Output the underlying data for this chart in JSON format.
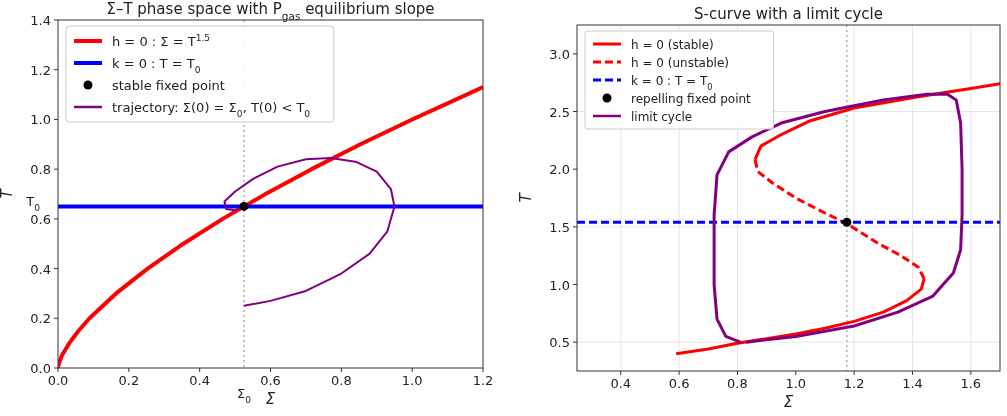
{
  "chart_data": [
    {
      "type": "line",
      "title": "Σ–T phase space with P$_{gas}$ equilibrium slope",
      "xlabel": "Σ",
      "ylabel": "T",
      "xlim": [
        0,
        1.2
      ],
      "ylim": [
        0,
        1.4
      ],
      "xticks": [
        {
          "value": 0,
          "label": "0.0"
        },
        {
          "value": 0.2,
          "label": "0.2"
        },
        {
          "value": 0.4,
          "label": "0.4"
        },
        {
          "value": 0.6,
          "label": "0.6"
        },
        {
          "value": 0.8,
          "label": "0.8"
        },
        {
          "value": 1,
          "label": "1.0"
        },
        {
          "value": 1.2,
          "label": "1.2"
        }
      ],
      "yticks": [
        {
          "value": 0,
          "label": "0.0"
        },
        {
          "value": 0.2,
          "label": "0.2"
        },
        {
          "value": 0.4,
          "label": "0.4"
        },
        {
          "value": 0.6,
          "label": "0.6"
        },
        {
          "value": 0.8,
          "label": "0.8"
        },
        {
          "value": 1,
          "label": "1.0"
        },
        {
          "value": 1.2,
          "label": "1.2"
        },
        {
          "value": 1.4,
          "label": "1.4"
        }
      ],
      "annotations": [
        {
          "text": "Σ$_{0}$",
          "x": 0.525,
          "y": 0
        },
        {
          "text": "T$_{0}$",
          "x": 0,
          "y": 0.65
        }
      ],
      "grid": true,
      "legend": "top left",
      "ref_lines": [
        {
          "axis": "x",
          "value": 0.525,
          "color": "#999999",
          "line_style": "dotted"
        }
      ],
      "series": [
        {
          "name": "h = 0 :  Σ = T$^{1.5}$",
          "color": "#ff0000",
          "line_style": "solid",
          "x": [
            0,
            0.001,
            0.003,
            0.011,
            0.032,
            0.058,
            0.089,
            0.164,
            0.253,
            0.354,
            0.465,
            0.586,
            0.716,
            0.854,
            1.0,
            1.154,
            1.2
          ],
          "values": [
            0,
            0.01,
            0.02,
            0.05,
            0.1,
            0.15,
            0.2,
            0.3,
            0.4,
            0.5,
            0.6,
            0.7,
            0.8,
            0.9,
            1.0,
            1.1,
            1.13
          ]
        },
        {
          "name": "k = 0 :  T = T$_{0}$",
          "color": "#0000ff",
          "line_style": "solid",
          "x": [
            0,
            1.2
          ],
          "values": [
            0.65,
            0.65
          ]
        },
        {
          "name": "stable fixed point",
          "type": "scatter",
          "color": "#000000",
          "marker": "circle",
          "x": [
            0.525
          ],
          "values": [
            0.65
          ]
        },
        {
          "name": "trajectory: Σ(0) = Σ$_{0}$,  T(0) < T$_{0}$",
          "color": "#800080",
          "line_style": "solid",
          "x": [
            0.525,
            0.6,
            0.7,
            0.8,
            0.88,
            0.93,
            0.95,
            0.94,
            0.9,
            0.84,
            0.77,
            0.7,
            0.62,
            0.55,
            0.5,
            0.47,
            0.475,
            0.5,
            0.525
          ],
          "values": [
            0.25,
            0.27,
            0.31,
            0.38,
            0.46,
            0.55,
            0.65,
            0.72,
            0.79,
            0.83,
            0.845,
            0.84,
            0.81,
            0.76,
            0.71,
            0.67,
            0.64,
            0.635,
            0.65
          ]
        }
      ]
    },
    {
      "type": "line",
      "title": "S-curve with a limit cycle",
      "xlabel": "Σ",
      "ylabel": "T",
      "xlim": [
        0.25,
        1.7
      ],
      "ylim": [
        0.25,
        3.25
      ],
      "xticks": [
        0.4,
        0.6,
        0.8,
        {
          "value": 1,
          "label": "1.0"
        },
        1.2,
        1.4,
        1.6
      ],
      "yticks": [
        0.5,
        {
          "value": 1,
          "label": "1.0"
        },
        1.5,
        {
          "value": 2,
          "label": "2.0"
        },
        2.5,
        {
          "value": 3,
          "label": "3.0"
        }
      ],
      "grid": true,
      "legend": "top left",
      "ref_lines": [
        {
          "axis": "x",
          "value": 1.175,
          "color": "#999999",
          "line_style": "dotted"
        }
      ],
      "series": [
        {
          "name": "h = 0 (stable)",
          "color": "#ff0000",
          "line_style": "solid",
          "x": [
            0.59,
            0.7,
            0.8,
            0.9,
            1.0,
            1.1,
            1.2,
            1.3,
            1.38,
            1.43,
            1.44
          ],
          "values": [
            0.4,
            0.44,
            0.49,
            0.53,
            0.57,
            0.62,
            0.68,
            0.76,
            0.86,
            0.96,
            1.05
          ]
        },
        {
          "name": "h = 0 (unstable)",
          "color": "#ff0000",
          "line_style": "dashed",
          "x": [
            1.44,
            1.42,
            1.36,
            1.28,
            1.18,
            1.1,
            1.0,
            0.92,
            0.87,
            0.86
          ],
          "values": [
            1.05,
            1.15,
            1.25,
            1.36,
            1.52,
            1.62,
            1.75,
            1.88,
            1.98,
            2.08
          ]
        },
        {
          "color": "#ff0000",
          "line_style": "solid",
          "x": [
            0.86,
            0.88,
            0.95,
            1.05,
            1.2,
            1.4,
            1.5,
            1.6,
            1.7
          ],
          "values": [
            2.08,
            2.2,
            2.3,
            2.42,
            2.53,
            2.62,
            2.66,
            2.7,
            2.74
          ]
        },
        {
          "name": "k = 0 :  T = T$_{0}$",
          "color": "#0000ff",
          "line_style": "dashed",
          "x": [
            0.25,
            1.7
          ],
          "values": [
            1.54,
            1.54
          ]
        },
        {
          "name": "repelling fixed point",
          "type": "scatter",
          "color": "#000000",
          "marker": "circle",
          "x": [
            1.175
          ],
          "values": [
            1.54
          ]
        },
        {
          "name": "limit cycle",
          "color": "#800080",
          "line_style": "solid",
          "x": [
            0.83,
            1.0,
            1.2,
            1.35,
            1.47,
            1.54,
            1.565,
            1.57,
            1.57,
            1.565,
            1.55,
            1.52,
            1.45,
            1.3,
            1.1,
            0.95,
            0.85,
            0.77,
            0.73,
            0.72,
            0.72,
            0.73,
            0.76,
            0.81
          ],
          "values": [
            0.5,
            0.55,
            0.64,
            0.76,
            0.9,
            1.1,
            1.3,
            1.6,
            2.0,
            2.4,
            2.6,
            2.65,
            2.65,
            2.6,
            2.5,
            2.4,
            2.28,
            2.15,
            1.95,
            1.6,
            1.0,
            0.7,
            0.55,
            0.5
          ]
        }
      ]
    }
  ]
}
